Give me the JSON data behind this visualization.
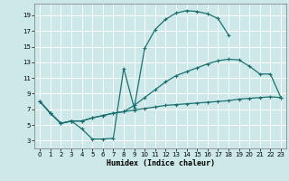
{
  "xlabel": "Humidex (Indice chaleur)",
  "bg_color": "#cde8e8",
  "grid_color": "#ffffff",
  "line_color": "#1a7070",
  "xlim": [
    -0.5,
    23.5
  ],
  "ylim": [
    2.0,
    20.5
  ],
  "xticks": [
    0,
    1,
    2,
    3,
    4,
    5,
    6,
    7,
    8,
    9,
    10,
    11,
    12,
    13,
    14,
    15,
    16,
    17,
    18,
    19,
    20,
    21,
    22,
    23
  ],
  "yticks": [
    3,
    5,
    7,
    9,
    11,
    13,
    15,
    17,
    19
  ],
  "line1_x": [
    0,
    1,
    2,
    3,
    4,
    5,
    6,
    7,
    8,
    9,
    10,
    11,
    12,
    13,
    14,
    15,
    16,
    17,
    18
  ],
  "line1_y": [
    8.0,
    6.5,
    5.2,
    5.5,
    4.5,
    3.2,
    3.2,
    3.3,
    12.2,
    7.2,
    14.8,
    17.2,
    18.5,
    19.3,
    19.6,
    19.5,
    19.2,
    18.6,
    16.5
  ],
  "line2_x": [
    0,
    1,
    2,
    3,
    4,
    5,
    6,
    7,
    8,
    9,
    10,
    11,
    12,
    13,
    14,
    15,
    16,
    17,
    18,
    19,
    20,
    21,
    22,
    23
  ],
  "line2_y": [
    8.0,
    6.5,
    5.2,
    5.5,
    5.5,
    5.9,
    6.2,
    6.5,
    6.7,
    6.9,
    7.1,
    7.3,
    7.5,
    7.6,
    7.7,
    7.8,
    7.9,
    8.0,
    8.1,
    8.3,
    8.4,
    8.5,
    8.6,
    8.5
  ],
  "line3_x": [
    0,
    1,
    2,
    3,
    4,
    5,
    6,
    7,
    8,
    9,
    10,
    11,
    12,
    13,
    14,
    15,
    16,
    17,
    18,
    19,
    20,
    21,
    22,
    23
  ],
  "line3_y": [
    8.0,
    6.5,
    5.2,
    5.5,
    5.5,
    5.9,
    6.2,
    6.5,
    6.7,
    7.5,
    8.5,
    9.5,
    10.5,
    11.3,
    11.8,
    12.3,
    12.8,
    13.2,
    13.4,
    13.3,
    12.5,
    11.5,
    11.5,
    8.5
  ]
}
